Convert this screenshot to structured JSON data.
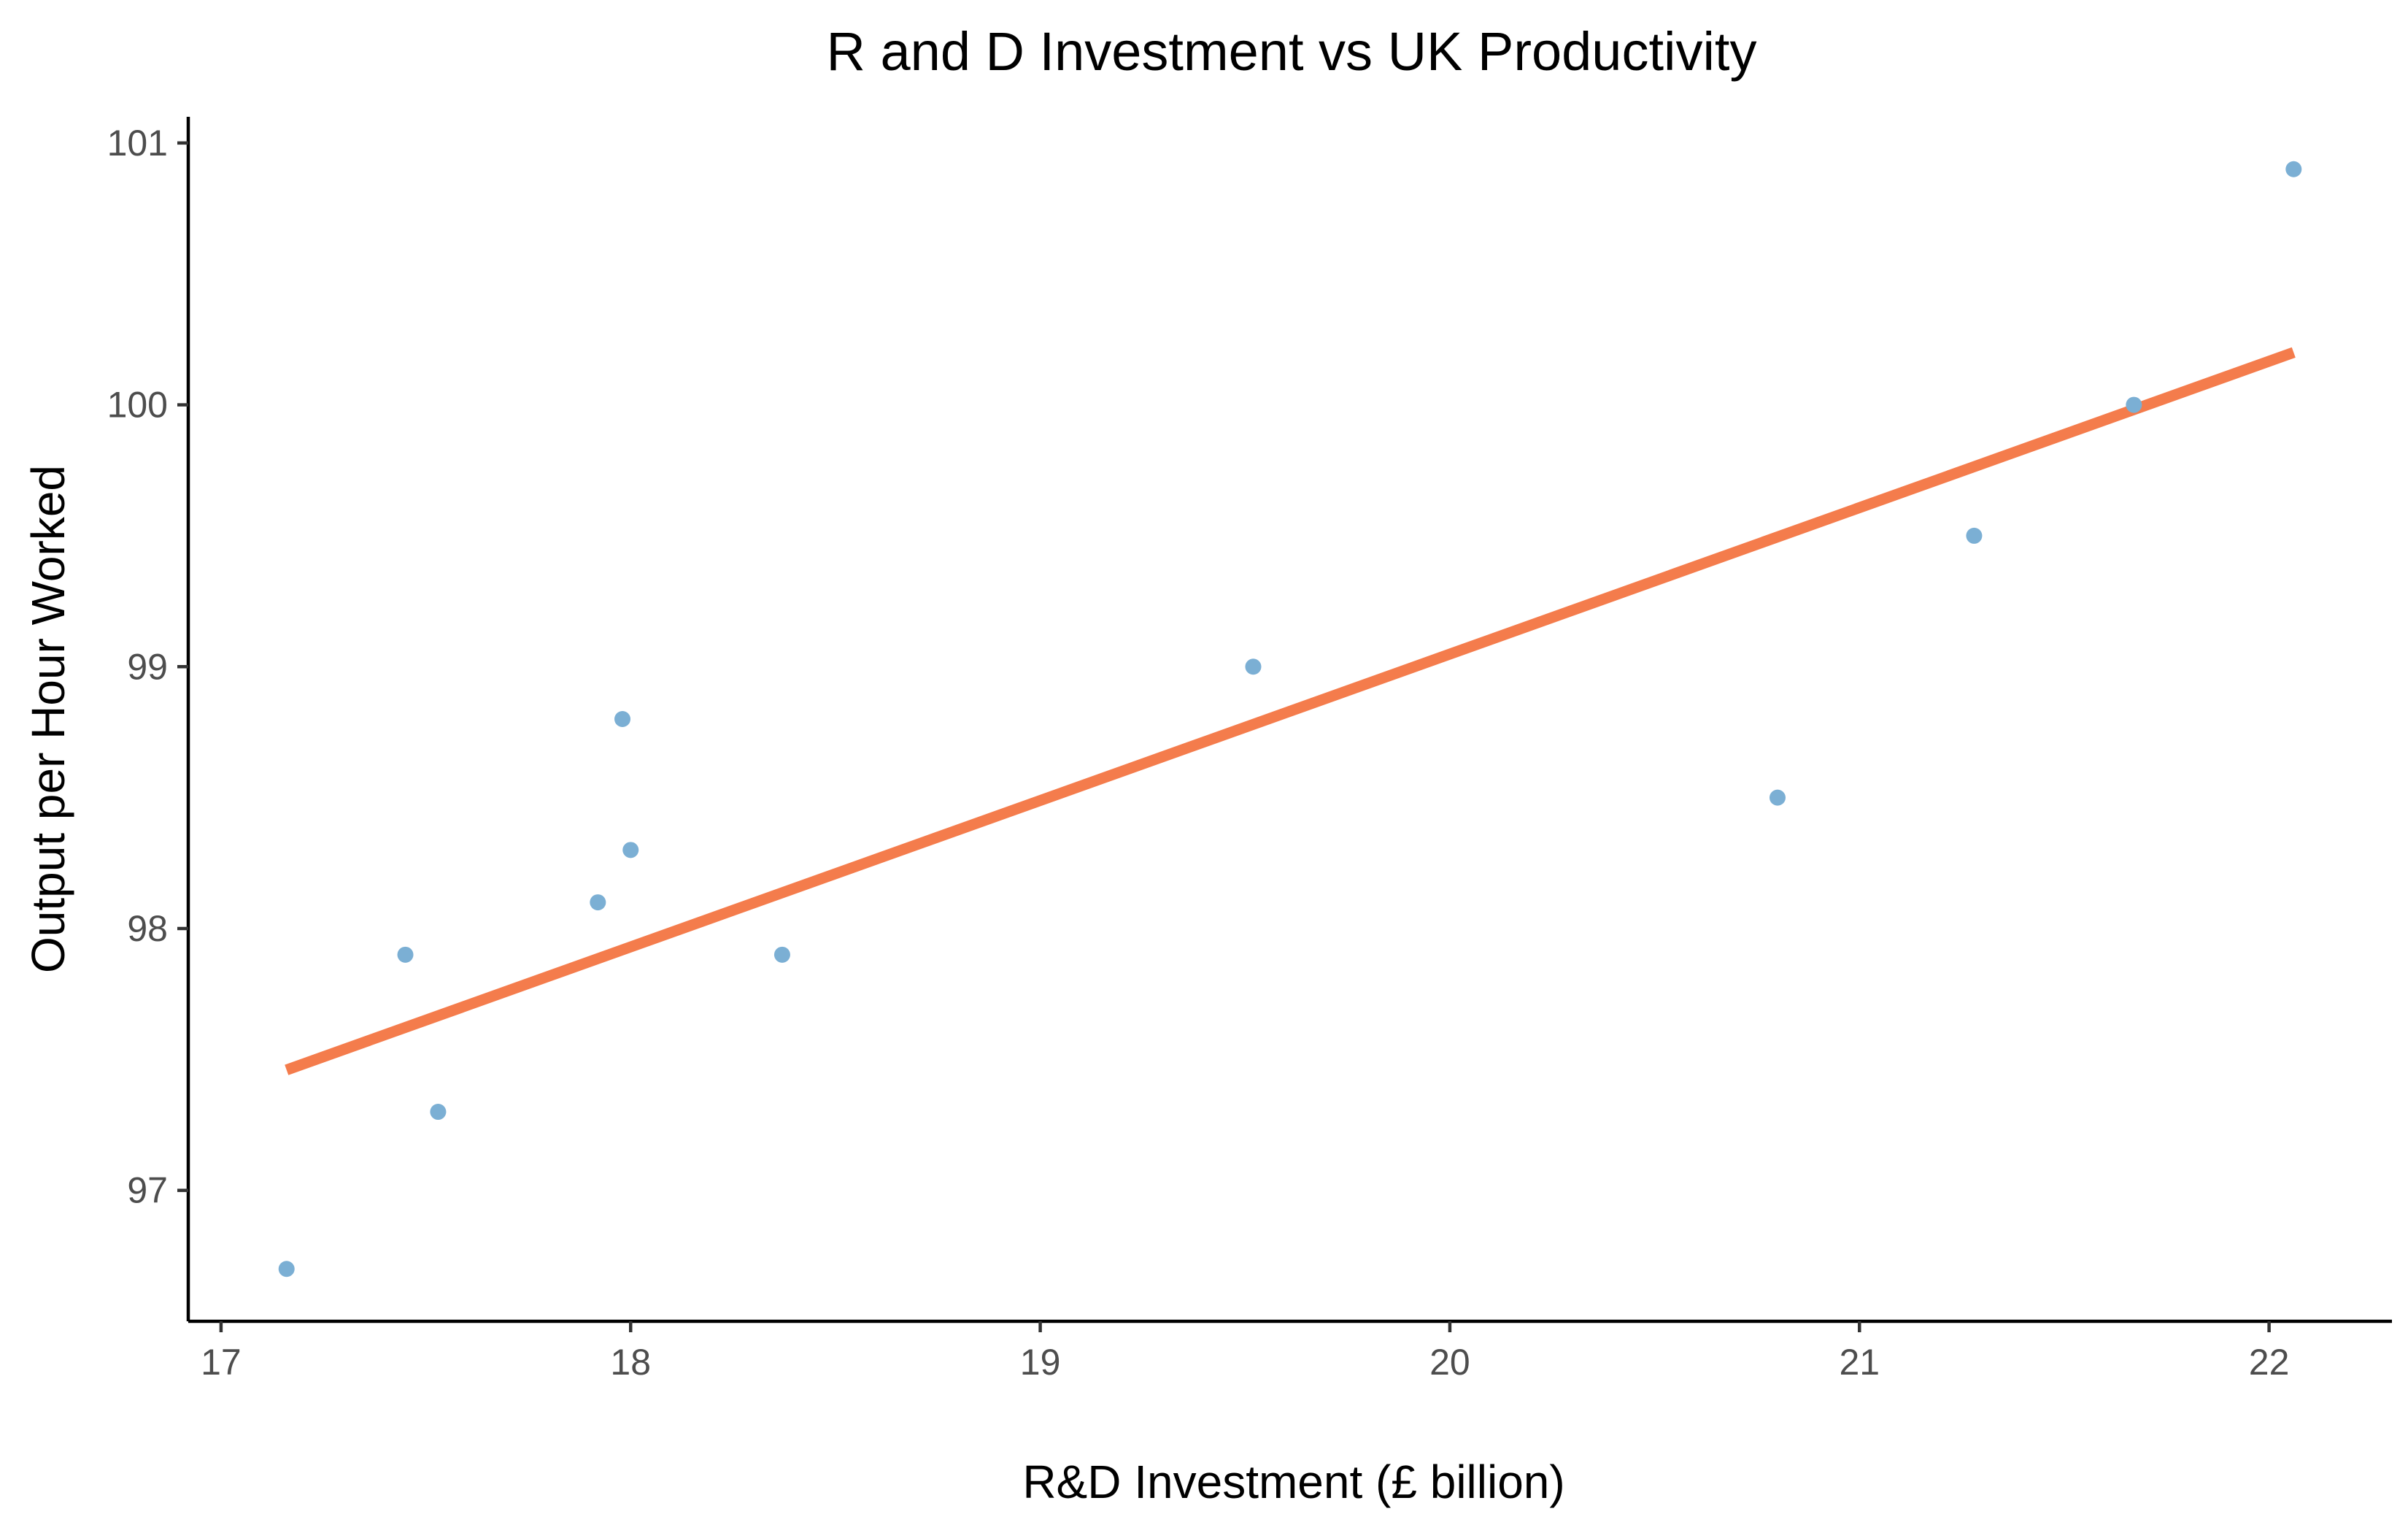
{
  "chart_data": {
    "type": "scatter",
    "title": "R and D Investment vs UK Productivity",
    "xlabel": "R&D Investment (£ billion)",
    "ylabel": "Output per Hour Worked",
    "xlim": [
      16.92,
      22.3
    ],
    "ylim": [
      96.5,
      101.1
    ],
    "x_ticks": [
      17,
      18,
      19,
      20,
      21,
      22
    ],
    "y_ticks": [
      97,
      98,
      99,
      100,
      101
    ],
    "grid": false,
    "legend": "none",
    "series": [
      {
        "type": "scatter",
        "color": "#7bafd4",
        "x": [
          17.16,
          17.45,
          17.53,
          17.92,
          17.98,
          18.0,
          18.37,
          19.52,
          20.8,
          21.28,
          21.67,
          22.06
        ],
        "y": [
          96.7,
          97.9,
          97.3,
          98.1,
          98.8,
          98.3,
          97.9,
          99.0,
          98.5,
          99.5,
          100.0,
          100.9
        ]
      },
      {
        "type": "line",
        "color": "#f47c4c",
        "x": [
          17.16,
          22.06
        ],
        "y": [
          97.46,
          100.2
        ]
      }
    ]
  }
}
